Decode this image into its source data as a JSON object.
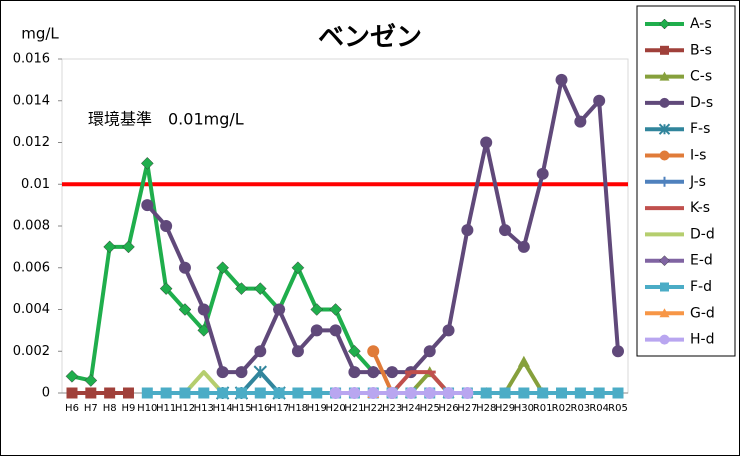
{
  "chart_data": {
    "type": "line",
    "title": "ベンゼン",
    "y_label": "mg/L",
    "annotation": "環境基準　0.01mg/L",
    "reference_line": {
      "value": 0.01,
      "color": "#ff0000"
    },
    "categories": [
      "H6",
      "H7",
      "H8",
      "H9",
      "H10",
      "H11",
      "H12",
      "H13",
      "H14",
      "H15",
      "H16",
      "H17",
      "H18",
      "H19",
      "H20",
      "H21",
      "H22",
      "H23",
      "H24",
      "H25",
      "H26",
      "H27",
      "H28",
      "H29",
      "H30",
      "R01",
      "R02",
      "R03",
      "R04",
      "R05"
    ],
    "ylim": [
      0,
      0.016
    ],
    "yticks": [
      0,
      0.002,
      0.004,
      0.006,
      0.008,
      0.01,
      0.012,
      0.014,
      0.016
    ],
    "legend": "right",
    "series": [
      {
        "name": "A-s",
        "color": "#1fae4c",
        "marker": "diamond",
        "values": [
          0.0008,
          0.0006,
          0.007,
          0.007,
          0.011,
          0.005,
          0.004,
          0.003,
          0.006,
          0.005,
          0.005,
          0.004,
          0.006,
          0.004,
          0.004,
          0.002,
          0.001,
          null,
          null,
          null,
          null,
          null,
          null,
          null,
          null,
          null,
          null,
          null,
          null,
          null
        ]
      },
      {
        "name": "B-s",
        "color": "#a0403a",
        "marker": "square",
        "values": [
          0,
          0,
          0,
          0,
          null,
          null,
          null,
          null,
          null,
          null,
          null,
          null,
          null,
          null,
          null,
          null,
          null,
          null,
          null,
          null,
          null,
          null,
          null,
          null,
          null,
          null,
          null,
          null,
          null,
          null
        ]
      },
      {
        "name": "C-s",
        "color": "#86a03c",
        "marker": "triangle",
        "values": [
          null,
          null,
          null,
          null,
          null,
          null,
          null,
          null,
          null,
          null,
          null,
          null,
          null,
          null,
          null,
          null,
          null,
          null,
          0,
          0.001,
          0,
          0,
          0,
          0,
          0.0015,
          0,
          null,
          null,
          null,
          null
        ]
      },
      {
        "name": "D-s",
        "color": "#60497a",
        "marker": "circle",
        "values": [
          null,
          null,
          null,
          null,
          0.009,
          0.008,
          0.006,
          0.004,
          0.001,
          0.001,
          0.002,
          0.004,
          0.002,
          0.003,
          0.003,
          0.001,
          0.001,
          0.001,
          0.001,
          0.002,
          0.003,
          0.0078,
          0.012,
          0.0078,
          0.007,
          0.0105,
          0.015,
          0.013,
          0.014,
          0.002
        ]
      },
      {
        "name": "F-s",
        "color": "#31859c",
        "marker": "x",
        "values": [
          null,
          null,
          null,
          null,
          null,
          null,
          null,
          null,
          0,
          0,
          0.001,
          0,
          null,
          null,
          null,
          null,
          null,
          null,
          null,
          null,
          null,
          null,
          null,
          null,
          null,
          null,
          null,
          null,
          null,
          null
        ]
      },
      {
        "name": "I-s",
        "color": "#e07b39",
        "marker": "circle",
        "values": [
          null,
          null,
          null,
          null,
          null,
          null,
          null,
          null,
          null,
          null,
          null,
          null,
          null,
          null,
          null,
          null,
          0.002,
          0,
          null,
          null,
          null,
          null,
          null,
          null,
          null,
          null,
          null,
          null,
          null,
          null
        ]
      },
      {
        "name": "J-s",
        "color": "#4f81bd",
        "marker": "plus",
        "values": [
          null,
          null,
          null,
          null,
          null,
          null,
          null,
          null,
          null,
          null,
          null,
          null,
          null,
          null,
          null,
          null,
          null,
          0,
          null,
          null,
          null,
          null,
          null,
          null,
          null,
          null,
          null,
          null,
          null,
          null
        ]
      },
      {
        "name": "K-s",
        "color": "#c0504d",
        "marker": "dash",
        "values": [
          null,
          null,
          null,
          null,
          null,
          null,
          null,
          null,
          null,
          null,
          null,
          null,
          null,
          null,
          null,
          null,
          null,
          0,
          0.001,
          0.001,
          0,
          null,
          null,
          null,
          null,
          null,
          null,
          null,
          null,
          null
        ]
      },
      {
        "name": "D-d",
        "color": "#b5ce6e",
        "marker": "none",
        "values": [
          null,
          null,
          null,
          null,
          null,
          null,
          0,
          0.001,
          0,
          null,
          null,
          null,
          null,
          null,
          null,
          null,
          null,
          null,
          null,
          null,
          null,
          null,
          null,
          null,
          null,
          null,
          null,
          null,
          null,
          null
        ]
      },
      {
        "name": "E-d",
        "color": "#8064a2",
        "marker": "diamond",
        "values": [
          null,
          null,
          null,
          null,
          null,
          null,
          null,
          null,
          null,
          null,
          null,
          null,
          null,
          null,
          0,
          0,
          0,
          null,
          null,
          null,
          null,
          null,
          null,
          null,
          null,
          null,
          null,
          null,
          null,
          null
        ]
      },
      {
        "name": "F-d",
        "color": "#4bacc6",
        "marker": "square",
        "values": [
          null,
          null,
          null,
          null,
          0,
          0,
          0,
          0,
          0,
          0,
          0,
          0,
          0,
          0,
          0,
          0,
          0,
          0,
          0,
          0,
          0,
          0,
          0,
          0,
          0,
          0,
          0,
          0,
          0,
          0
        ]
      },
      {
        "name": "G-d",
        "color": "#f79646",
        "marker": "triangle",
        "values": [
          null,
          null,
          null,
          null,
          null,
          null,
          null,
          null,
          null,
          null,
          null,
          null,
          null,
          null,
          null,
          null,
          0,
          null,
          null,
          null,
          null,
          null,
          null,
          null,
          null,
          null,
          null,
          null,
          null,
          null
        ]
      },
      {
        "name": "H-d",
        "color": "#b9a6f0",
        "marker": "circle",
        "values": [
          null,
          null,
          null,
          null,
          null,
          null,
          null,
          null,
          null,
          null,
          null,
          null,
          null,
          null,
          0,
          0,
          0,
          0,
          0,
          0,
          0,
          0,
          null,
          null,
          null,
          null,
          null,
          null,
          null,
          null
        ]
      }
    ]
  }
}
